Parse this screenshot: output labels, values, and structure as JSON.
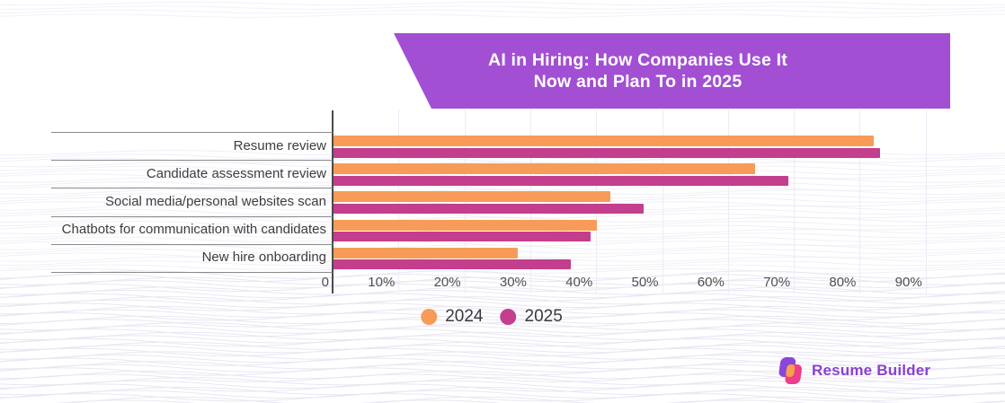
{
  "title": {
    "line1": "AI in Hiring: How Companies Use It",
    "line2": "Now and Plan To in 2025"
  },
  "chart_data": {
    "type": "bar",
    "orientation": "horizontal",
    "title": "AI in Hiring: How Companies Use It Now and Plan To in 2025",
    "categories": [
      "Resume review",
      "Candidate assessment review",
      "Social media/personal websites scan",
      "Chatbots for communication with candidates",
      "New hire onboarding"
    ],
    "series": [
      {
        "name": "2024",
        "color": "#F89B58",
        "values": [
          82,
          64,
          42,
          40,
          28
        ]
      },
      {
        "name": "2025",
        "color": "#C33E8D",
        "values": [
          83,
          69,
          47,
          39,
          36
        ]
      }
    ],
    "unit": "%",
    "x_ticks": [
      "0",
      "10%",
      "20%",
      "30%",
      "40%",
      "50%",
      "60%",
      "70%",
      "80%",
      "90%"
    ],
    "xlim": [
      0,
      100
    ],
    "grid": true,
    "legend_position": "bottom-center"
  },
  "branding": {
    "logo_text": "Resume Builder"
  },
  "colors": {
    "banner": "#A24FD3",
    "orange": "#F89B58",
    "magenta": "#C33E8D",
    "logo_text": "#8A3FD1",
    "logo_purple": "#8B45DA",
    "logo_pink": "#EE3D8B",
    "logo_orange": "#F7A04C"
  }
}
